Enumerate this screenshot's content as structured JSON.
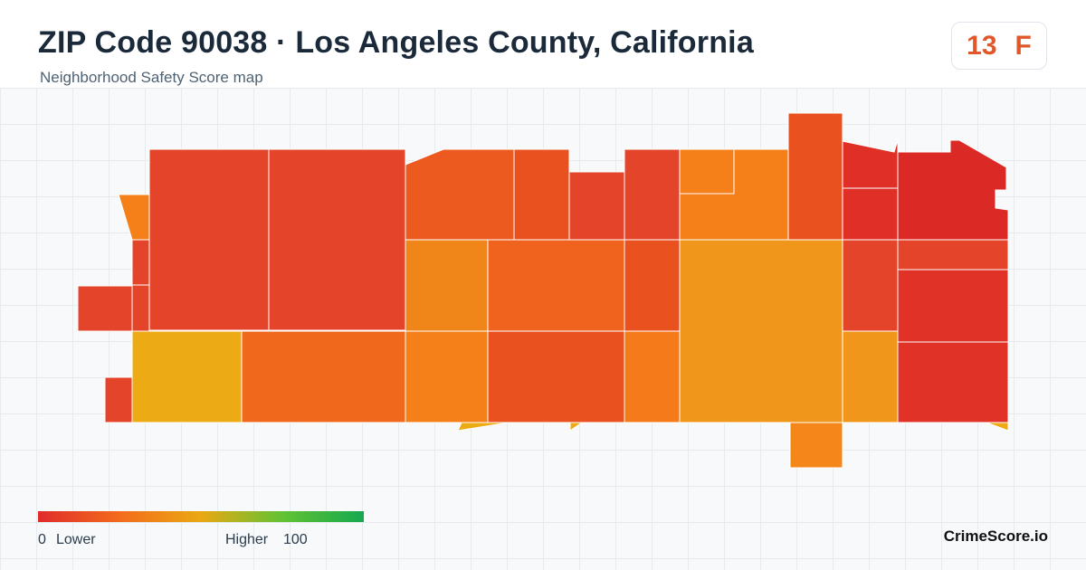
{
  "header": {
    "title": "ZIP Code 90038 · Los Angeles County, California",
    "subtitle": "Neighborhood Safety Score map"
  },
  "score": {
    "value": "13",
    "grade": "F",
    "color": "#e2572a"
  },
  "map": {
    "tile_colors": [
      "#df2f26",
      "#e3442a",
      "#e9521f",
      "#f0681c",
      "#f5801a",
      "#f0961a",
      "#ecaa14"
    ]
  },
  "legend": {
    "min_label": "0",
    "low_label": "Lower",
    "high_label": "Higher",
    "max_label": "100",
    "gradient": [
      "#e02b2b",
      "#f36b1c",
      "#eaa813",
      "#62c233",
      "#15a950"
    ]
  },
  "brand": {
    "name": "CrimeScore.io"
  }
}
